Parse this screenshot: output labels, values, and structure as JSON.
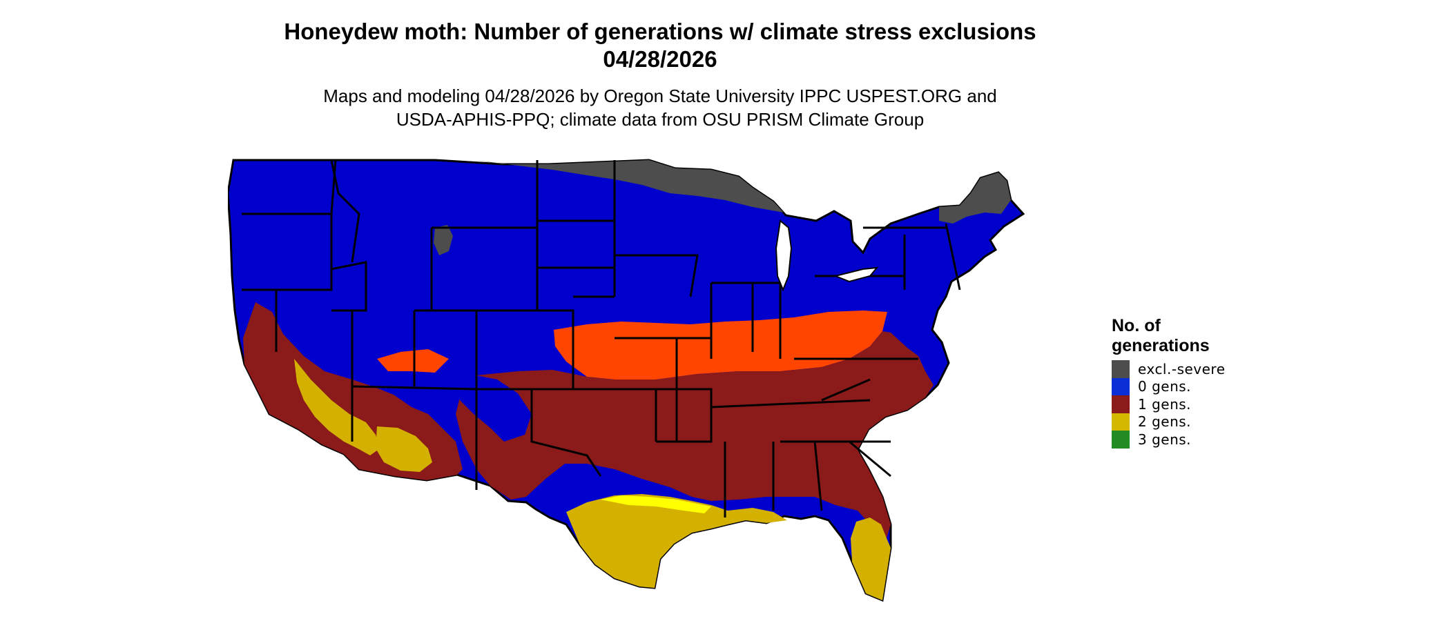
{
  "title": {
    "line1": "Honeydew moth: Number of generations w/ climate stress exclusions",
    "line2": "04/28/2026"
  },
  "subtitle": {
    "line1": "Maps and modeling 04/28/2026 by Oregon State University IPPC USPEST.ORG and",
    "line2": "USDA-APHIS-PPQ; climate data from OSU PRISM Climate Group"
  },
  "legend": {
    "title_line1": "No. of",
    "title_line2": "generations",
    "items": [
      {
        "label": "excl.-severe",
        "color": "#4d4d4d"
      },
      {
        "label": "0 gens.",
        "color": "#0a2fd6"
      },
      {
        "label": "1 gens.",
        "color": "#8b1a1a"
      },
      {
        "label": "2 gens.",
        "color": "#d4b800"
      },
      {
        "label": "3 gens.",
        "color": "#228b22"
      }
    ]
  },
  "map_colors": {
    "background_blue": "#0000cd",
    "excluded": "#4d4d4d",
    "one_gen": "#8b1a1a",
    "one_gen_transition": "#ff4500",
    "two_gen": "#d4b000",
    "two_gen_bright": "#ffff00",
    "border": "#000000"
  }
}
